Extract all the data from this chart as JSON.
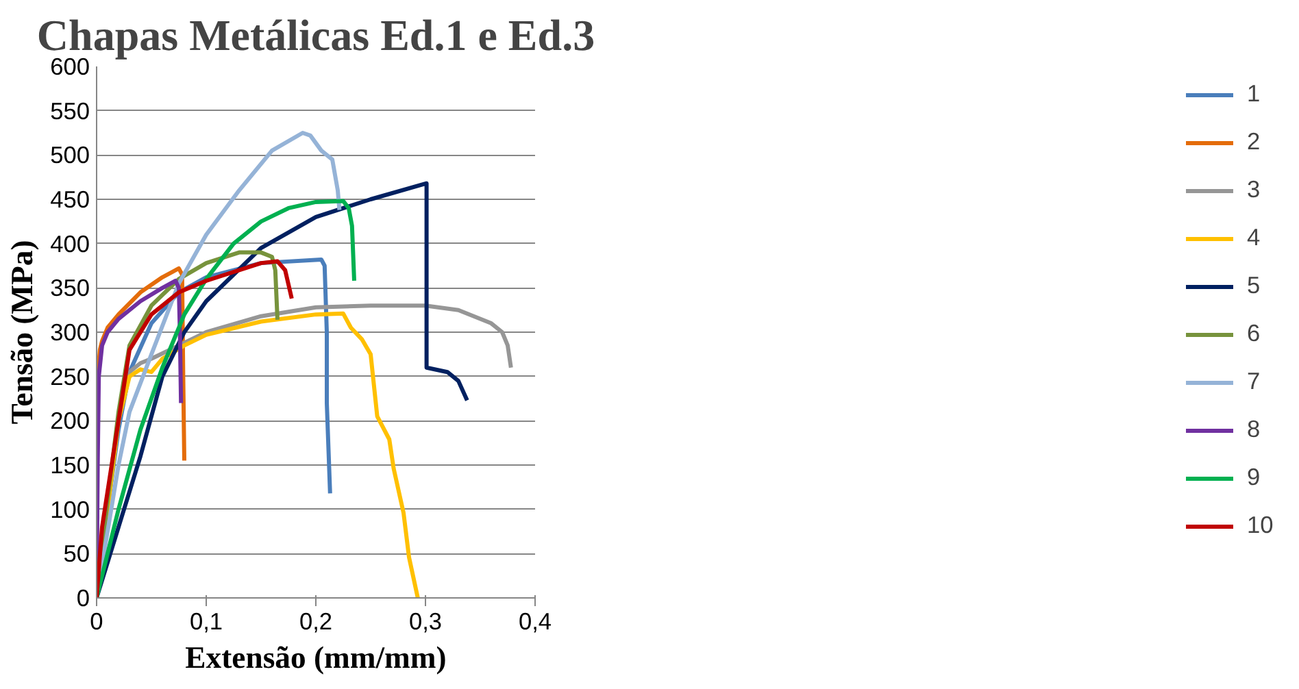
{
  "chart_data": {
    "type": "line",
    "title": "Chapas Metálicas Ed.1 e Ed.3",
    "xlabel": "Extensão (mm/mm)",
    "ylabel": "Tensão (MPa)",
    "xlim": [
      0,
      0.4
    ],
    "ylim": [
      0,
      600
    ],
    "xticks": [
      0,
      {
        "value": 0.1,
        "label": "0,1"
      },
      {
        "value": 0.2,
        "label": "0,2"
      },
      {
        "value": 0.3,
        "label": "0,3"
      },
      {
        "value": 0.4,
        "label": "0,4"
      }
    ],
    "yticks": [
      0,
      50,
      100,
      150,
      200,
      250,
      300,
      350,
      400,
      450,
      500,
      550,
      600
    ],
    "grid": "y",
    "legend": "right",
    "marker": "none",
    "line_style": "solid",
    "series": [
      {
        "name": "1",
        "color": "#4a7ebb",
        "x": [
          0,
          0.01,
          0.02,
          0.03,
          0.05,
          0.075,
          0.1,
          0.15,
          0.205,
          0.208,
          0.21,
          0.21,
          0.213
        ],
        "values": [
          0,
          100,
          190,
          255,
          310,
          345,
          362,
          378,
          382,
          375,
          300,
          220,
          118
        ]
      },
      {
        "name": "2",
        "color": "#e46c0a",
        "x": [
          0,
          0.0005,
          0.001,
          0.003,
          0.005,
          0.01,
          0.02,
          0.04,
          0.06,
          0.075,
          0.078,
          0.079,
          0.08
        ],
        "values": [
          0,
          150,
          250,
          280,
          290,
          305,
          320,
          345,
          362,
          372,
          365,
          250,
          155
        ]
      },
      {
        "name": "3",
        "color": "#969696",
        "x": [
          0,
          0.01,
          0.02,
          0.03,
          0.04,
          0.05,
          0.075,
          0.1,
          0.15,
          0.2,
          0.25,
          0.3,
          0.33,
          0.36,
          0.37,
          0.375,
          0.378
        ],
        "values": [
          0,
          100,
          200,
          255,
          265,
          270,
          285,
          300,
          318,
          328,
          330,
          330,
          325,
          310,
          300,
          285,
          260
        ]
      },
      {
        "name": "4",
        "color": "#ffc000",
        "x": [
          0,
          0.01,
          0.02,
          0.03,
          0.04,
          0.05,
          0.06,
          0.08,
          0.1,
          0.15,
          0.2,
          0.225,
          0.232,
          0.242,
          0.25,
          0.256,
          0.267,
          0.271,
          0.28,
          0.285,
          0.293
        ],
        "values": [
          0,
          100,
          200,
          250,
          258,
          255,
          270,
          285,
          297,
          312,
          320,
          321,
          305,
          292,
          275,
          205,
          179,
          146,
          96,
          46,
          0
        ]
      },
      {
        "name": "5",
        "color": "#002060",
        "x": [
          0,
          0.02,
          0.04,
          0.06,
          0.08,
          0.1,
          0.15,
          0.2,
          0.25,
          0.301,
          0.301,
          0.32,
          0.33,
          0.338
        ],
        "values": [
          0,
          80,
          160,
          250,
          300,
          335,
          395,
          430,
          450,
          468,
          260,
          255,
          245,
          223
        ]
      },
      {
        "name": "6",
        "color": "#77933c",
        "x": [
          0,
          0.01,
          0.02,
          0.03,
          0.05,
          0.075,
          0.1,
          0.13,
          0.15,
          0.16,
          0.163,
          0.165
        ],
        "values": [
          0,
          110,
          210,
          285,
          330,
          360,
          378,
          390,
          390,
          385,
          370,
          314
        ]
      },
      {
        "name": "7",
        "color": "#95b3d7",
        "x": [
          0,
          0.02,
          0.03,
          0.05,
          0.075,
          0.1,
          0.13,
          0.16,
          0.188,
          0.195,
          0.205,
          0.215,
          0.22,
          0.2215
        ],
        "values": [
          0,
          150,
          210,
          275,
          355,
          410,
          460,
          505,
          525,
          522,
          505,
          495,
          460,
          438
        ]
      },
      {
        "name": "8",
        "color": "#7030a0",
        "x": [
          0,
          0.001,
          0.002,
          0.005,
          0.01,
          0.02,
          0.04,
          0.06,
          0.072,
          0.075,
          0.076,
          0.077
        ],
        "values": [
          0,
          150,
          250,
          285,
          300,
          315,
          335,
          350,
          358,
          350,
          300,
          220
        ]
      },
      {
        "name": "9",
        "color": "#00b050",
        "x": [
          0,
          0.02,
          0.04,
          0.06,
          0.08,
          0.1,
          0.125,
          0.15,
          0.175,
          0.2,
          0.225,
          0.23,
          0.233,
          0.235
        ],
        "values": [
          0,
          100,
          190,
          260,
          320,
          360,
          400,
          425,
          440,
          447,
          448,
          440,
          420,
          358
        ]
      },
      {
        "name": "10",
        "color": "#c00000",
        "x": [
          0,
          0.005,
          0.01,
          0.02,
          0.03,
          0.05,
          0.075,
          0.1,
          0.15,
          0.165,
          0.172,
          0.178
        ],
        "values": [
          0,
          80,
          120,
          200,
          280,
          320,
          345,
          358,
          378,
          380,
          370,
          338
        ]
      }
    ]
  }
}
